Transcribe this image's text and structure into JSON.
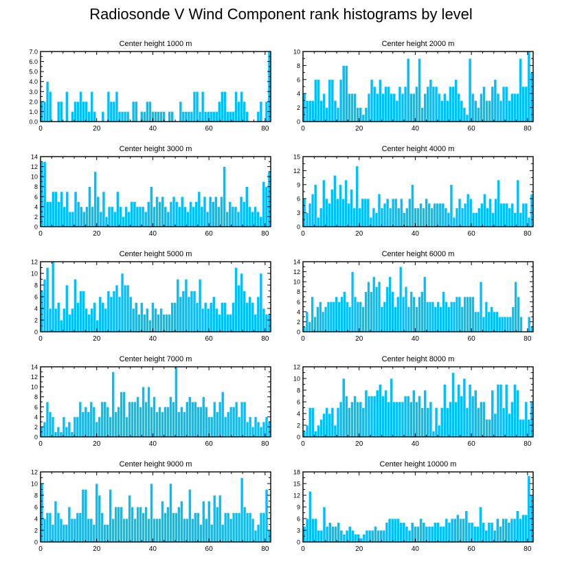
{
  "title": "Radiosonde V Wind Component rank histograms by level",
  "colors": {
    "bar": "#00BFFF",
    "bar_edge": "#ffffff",
    "frame": "#000000"
  },
  "chart_data": [
    {
      "type": "bar",
      "title": "Center height 1000 m",
      "xlim": [
        0,
        82
      ],
      "ylim": [
        0,
        7
      ],
      "xticks": [
        0,
        20,
        40,
        60,
        80
      ],
      "yticks": [
        0,
        1,
        2,
        3,
        4,
        5,
        6,
        7
      ],
      "ytick_labels": [
        "0.0",
        "1.0",
        "2.0",
        "3.0",
        "4.0",
        "5.0",
        "6.0",
        "7.0"
      ],
      "values": [
        2,
        2,
        4,
        3,
        0,
        0,
        2,
        2,
        0,
        3,
        0,
        1,
        2,
        2,
        3,
        2,
        2,
        1,
        3,
        1,
        0,
        0,
        1,
        0,
        3,
        2,
        2,
        3,
        1,
        1,
        1,
        1,
        0,
        2,
        2,
        0,
        1,
        1,
        2,
        2,
        1,
        1,
        1,
        1,
        1,
        0,
        1,
        1,
        0,
        0,
        2,
        1,
        1,
        1,
        1,
        3,
        3,
        1,
        3,
        1,
        1,
        1,
        1,
        1,
        2,
        3,
        3,
        1,
        1,
        1,
        3,
        2,
        3,
        2,
        1,
        0,
        0,
        0,
        1,
        2,
        0,
        2,
        7
      ]
    },
    {
      "type": "bar",
      "title": "Center height 2000 m",
      "xlim": [
        0,
        82
      ],
      "ylim": [
        0,
        10
      ],
      "xticks": [
        0,
        20,
        40,
        60,
        80
      ],
      "yticks": [
        0,
        2,
        4,
        6,
        8,
        10
      ],
      "ytick_labels": [
        "0",
        "2",
        "4",
        "6",
        "8",
        "10"
      ],
      "values": [
        4,
        3,
        3,
        3,
        6,
        6,
        3,
        4,
        2,
        6,
        6,
        3,
        2,
        6,
        8,
        8,
        4,
        4,
        4,
        2,
        2,
        1,
        2,
        4,
        6,
        5,
        4,
        6,
        4,
        5,
        5,
        4,
        4,
        3,
        5,
        4,
        5,
        9,
        4,
        4,
        5,
        9,
        2,
        4,
        5,
        6,
        5,
        5,
        4,
        3,
        4,
        3,
        5,
        5,
        6,
        4,
        3,
        2,
        1,
        9,
        4,
        3,
        2,
        4,
        5,
        3,
        3,
        5,
        6,
        4,
        3,
        5,
        5,
        3,
        4,
        4,
        4,
        9,
        5,
        5,
        10,
        7
      ]
    },
    {
      "type": "bar",
      "title": "Center height 3000 m",
      "xlim": [
        0,
        82
      ],
      "ylim": [
        0,
        14
      ],
      "xticks": [
        0,
        20,
        40,
        60,
        80
      ],
      "yticks": [
        0,
        2,
        4,
        6,
        8,
        10,
        12,
        14
      ],
      "ytick_labels": [
        "0",
        "2",
        "4",
        "6",
        "8",
        "10",
        "12",
        "14"
      ],
      "values": [
        13,
        13,
        5,
        5,
        7,
        7,
        5,
        7,
        4,
        7,
        3,
        3,
        7,
        5,
        4,
        3,
        4,
        8,
        4,
        11,
        6,
        3,
        7,
        2,
        4,
        4,
        3,
        7,
        4,
        2,
        4,
        3,
        5,
        5,
        4,
        4,
        4,
        3,
        5,
        8,
        4,
        6,
        5,
        6,
        4,
        3,
        5,
        6,
        5,
        4,
        6,
        4,
        3,
        5,
        4,
        5,
        7,
        4,
        6,
        3,
        6,
        5,
        6,
        4,
        6,
        12,
        3,
        5,
        4,
        4,
        3,
        6,
        5,
        8,
        4,
        3,
        4,
        3,
        2,
        9,
        8,
        11
      ]
    },
    {
      "type": "bar",
      "title": "Center height 4000 m",
      "xlim": [
        0,
        82
      ],
      "ylim": [
        0,
        15
      ],
      "xticks": [
        0,
        20,
        40,
        60,
        80
      ],
      "yticks": [
        0,
        3,
        6,
        9,
        12,
        15
      ],
      "ytick_labels": [
        "0",
        "3",
        "6",
        "9",
        "12",
        "15"
      ],
      "values": [
        6,
        3,
        5,
        7,
        9,
        2,
        4,
        10,
        6,
        5,
        8,
        11,
        6,
        9,
        6,
        10,
        5,
        8,
        4,
        13,
        4,
        6,
        6,
        6,
        2,
        4,
        3,
        7,
        4,
        5,
        6,
        4,
        6,
        6,
        4,
        6,
        3,
        4,
        6,
        9,
        4,
        4,
        5,
        4,
        6,
        5,
        4,
        5,
        5,
        5,
        5,
        4,
        3,
        9,
        2,
        4,
        6,
        4,
        5,
        7,
        6,
        3,
        3,
        4,
        5,
        7,
        4,
        6,
        3,
        6,
        10,
        5,
        5,
        5,
        4,
        5,
        3,
        10,
        3,
        5,
        5,
        2,
        7
      ]
    },
    {
      "type": "bar",
      "title": "Center height 5000 m",
      "xlim": [
        0,
        82
      ],
      "ylim": [
        0,
        12
      ],
      "xticks": [
        0,
        20,
        40,
        60,
        80
      ],
      "yticks": [
        0,
        2,
        4,
        6,
        8,
        10,
        12
      ],
      "ytick_labels": [
        "0",
        "2",
        "4",
        "6",
        "8",
        "10",
        "12"
      ],
      "values": [
        7,
        9,
        11,
        4,
        12,
        4,
        5,
        2,
        4,
        8,
        3,
        4,
        9,
        5,
        7,
        7,
        4,
        3,
        4,
        5,
        2,
        6,
        5,
        4,
        7,
        6,
        7,
        8,
        6,
        10,
        8,
        8,
        6,
        4,
        5,
        3,
        5,
        3,
        4,
        2,
        5,
        4,
        3,
        4,
        3,
        3,
        3,
        5,
        5,
        9,
        6,
        7,
        9,
        6,
        7,
        7,
        5,
        9,
        4,
        5,
        4,
        5,
        6,
        4,
        3,
        5,
        5,
        3,
        3,
        5,
        11,
        8,
        10,
        7,
        5,
        6,
        5,
        3,
        6,
        10,
        4,
        3,
        3
      ]
    },
    {
      "type": "bar",
      "title": "Center height 6000 m",
      "xlim": [
        0,
        82
      ],
      "ylim": [
        0,
        14
      ],
      "xticks": [
        0,
        20,
        40,
        60,
        80
      ],
      "yticks": [
        0,
        2,
        4,
        6,
        8,
        10,
        12,
        14
      ],
      "ytick_labels": [
        "0",
        "2",
        "4",
        "6",
        "8",
        "10",
        "12",
        "14"
      ],
      "values": [
        1,
        4,
        2,
        7,
        3,
        5,
        6,
        4,
        5,
        6,
        6,
        6,
        7,
        6,
        7,
        8,
        6,
        5,
        12,
        7,
        6,
        6,
        5,
        8,
        10,
        8,
        11,
        9,
        10,
        5,
        6,
        9,
        11,
        8,
        5,
        7,
        13,
        7,
        9,
        5,
        8,
        7,
        5,
        7,
        8,
        11,
        6,
        6,
        6,
        5,
        6,
        5,
        8,
        6,
        5,
        6,
        6,
        7,
        7,
        5,
        7,
        7,
        7,
        7,
        4,
        4,
        10,
        3,
        6,
        4,
        5,
        4,
        4,
        3,
        3,
        3,
        3,
        3,
        5,
        10,
        7,
        3,
        0,
        0,
        3,
        1
      ]
    },
    {
      "type": "bar",
      "title": "Center height 7000 m",
      "xlim": [
        0,
        82
      ],
      "ylim": [
        0,
        14
      ],
      "xticks": [
        0,
        20,
        40,
        60,
        80
      ],
      "yticks": [
        0,
        2,
        4,
        6,
        8,
        10,
        12,
        14
      ],
      "ytick_labels": [
        "0",
        "2",
        "4",
        "6",
        "8",
        "10",
        "12",
        "14"
      ],
      "values": [
        2,
        3,
        7,
        5,
        4,
        1,
        2,
        1,
        4,
        2,
        3,
        1,
        4,
        4,
        7,
        5,
        6,
        5,
        7,
        6,
        3,
        4,
        7,
        7,
        6,
        4,
        13,
        5,
        6,
        9,
        9,
        4,
        7,
        7,
        7,
        8,
        6,
        10,
        7,
        10,
        6,
        8,
        5,
        6,
        5,
        6,
        6,
        8,
        7,
        14,
        5,
        6,
        5,
        7,
        8,
        7,
        7,
        6,
        6,
        8,
        6,
        4,
        4,
        7,
        5,
        7,
        9,
        4,
        5,
        6,
        6,
        7,
        4,
        7,
        7,
        3,
        4,
        2,
        4,
        3,
        2,
        3,
        4,
        3
      ]
    },
    {
      "type": "bar",
      "title": "Center height 8000 m",
      "xlim": [
        0,
        82
      ],
      "ylim": [
        0,
        12
      ],
      "xticks": [
        0,
        20,
        40,
        60,
        80
      ],
      "yticks": [
        0,
        2,
        4,
        6,
        8,
        10,
        12
      ],
      "ytick_labels": [
        "0",
        "2",
        "4",
        "6",
        "8",
        "10",
        "12"
      ],
      "values": [
        1,
        2,
        5,
        5,
        1,
        2,
        3,
        4,
        5,
        4,
        5,
        2,
        5,
        6,
        10,
        7,
        5,
        6,
        7,
        6,
        6,
        5,
        8,
        7,
        7,
        7,
        8,
        9,
        7,
        8,
        6,
        10,
        6,
        6,
        6,
        6,
        7,
        7,
        6,
        8,
        6,
        7,
        5,
        8,
        5,
        6,
        1,
        5,
        2,
        5,
        9,
        5,
        6,
        11,
        6,
        9,
        7,
        10,
        5,
        9,
        7,
        8,
        5,
        6,
        6,
        3,
        3,
        8,
        4,
        9,
        9,
        5,
        9,
        4,
        6,
        9,
        8,
        3,
        3,
        6,
        3,
        6
      ]
    },
    {
      "type": "bar",
      "title": "Center height 9000 m",
      "xlim": [
        0,
        82
      ],
      "ylim": [
        0,
        12
      ],
      "xticks": [
        0,
        20,
        40,
        60,
        80
      ],
      "yticks": [
        0,
        2,
        4,
        6,
        8,
        10,
        12
      ],
      "ytick_labels": [
        "0",
        "2",
        "4",
        "6",
        "8",
        "10",
        "12"
      ],
      "values": [
        10,
        4,
        5,
        5,
        3,
        7,
        5,
        4,
        3,
        3,
        6,
        4,
        4,
        5,
        5,
        9,
        9,
        4,
        4,
        3,
        10,
        8,
        5,
        3,
        3,
        9,
        4,
        6,
        6,
        6,
        4,
        4,
        8,
        6,
        4,
        6,
        6,
        5,
        6,
        4,
        10,
        4,
        4,
        4,
        7,
        5,
        6,
        10,
        5,
        5,
        6,
        7,
        4,
        4,
        9,
        4,
        5,
        5,
        3,
        7,
        4,
        7,
        3,
        8,
        6,
        8,
        3,
        5,
        5,
        4,
        5,
        5,
        5,
        11,
        6,
        5,
        5,
        4,
        2,
        3,
        5,
        5,
        9,
        2
      ]
    },
    {
      "type": "bar",
      "title": "Center height 10000 m",
      "xlim": [
        0,
        82
      ],
      "ylim": [
        0,
        18
      ],
      "xticks": [
        0,
        20,
        40,
        60,
        80
      ],
      "yticks": [
        0,
        3,
        6,
        9,
        12,
        15,
        18
      ],
      "ytick_labels": [
        "0",
        "3",
        "6",
        "9",
        "12",
        "15",
        "18"
      ],
      "values": [
        4,
        6,
        13,
        6,
        6,
        3,
        3,
        9,
        4,
        5,
        4,
        4,
        5,
        3,
        2,
        3,
        4,
        3,
        2,
        2,
        1,
        2,
        3,
        3,
        3,
        4,
        3,
        3,
        3,
        5,
        6,
        6,
        6,
        6,
        5,
        5,
        4,
        3,
        5,
        4,
        4,
        6,
        5,
        4,
        4,
        4,
        5,
        5,
        4,
        4,
        6,
        5,
        6,
        6,
        7,
        6,
        6,
        8,
        5,
        5,
        4,
        4,
        9,
        5,
        3,
        5,
        5,
        3,
        6,
        4,
        6,
        6,
        5,
        6,
        6,
        8,
        6,
        7,
        7,
        17,
        12
      ]
    }
  ]
}
